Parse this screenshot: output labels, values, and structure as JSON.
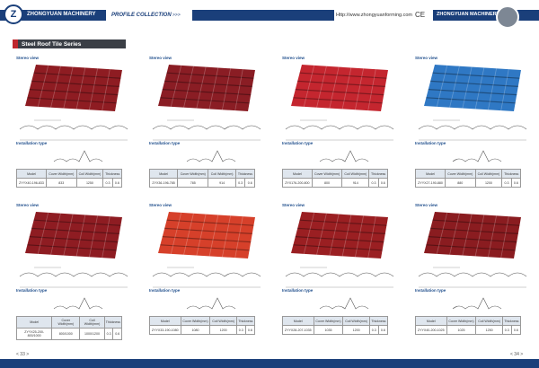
{
  "header": {
    "brand": "ZHONGYUAN MACHINERY",
    "collection": "PROFILE COLLECTION",
    "arrows": ">>>",
    "url": "Http://www.zhongyuanforming.com",
    "ce": "CE",
    "brand_right": "ZHONGYUAN MACHINERY"
  },
  "section_title": "Steel Roof Tile Series",
  "products": [
    {
      "stereo_label": "Stereo view",
      "installation_label": "Installation type",
      "table": {
        "headers": [
          "Model",
          "Cover Width(mm)",
          "Coil Width(mm)",
          "Thickness"
        ],
        "row": [
          "ZYYX40-196-833",
          "833",
          "1250",
          "0.3",
          "0.6"
        ]
      }
    },
    {
      "stereo_label": "Stereo view",
      "installation_label": "Installation type",
      "table": {
        "headers": [
          "Model",
          "Cover Width(mm)",
          "Coil Width(mm)",
          "Thickness"
        ],
        "row": [
          "ZYX36-196-785",
          "785",
          "914",
          "0.3",
          "0.6"
        ]
      }
    },
    {
      "stereo_label": "Stereo view",
      "installation_label": "Installation type",
      "table": {
        "headers": [
          "Model",
          "Cover Width(mm)",
          "Coil Width(mm)",
          "Thickness"
        ],
        "row": [
          "ZYX176-200-800",
          "800",
          "914",
          "0.3",
          "0.6"
        ]
      }
    },
    {
      "stereo_label": "Stereo view",
      "installation_label": "Installation type",
      "table": {
        "headers": [
          "Model",
          "Cover Width(mm)",
          "Coil Width(mm)",
          "Thickness"
        ],
        "row": [
          "ZYYX27-190-880",
          "880",
          "1200",
          "0.3",
          "0.6"
        ]
      }
    },
    {
      "stereo_label": "Stereo view",
      "installation_label": "Installation type",
      "table": {
        "headers": [
          "Model",
          "Cover Width(mm)",
          "Coil Width(mm)",
          "Thickness"
        ],
        "row": [
          "ZYYX25-200-800/1000",
          "800/1000",
          "1000/1200",
          "0.3",
          "0.6"
        ]
      }
    },
    {
      "stereo_label": "Stereo view",
      "installation_label": "Installation type",
      "table": {
        "headers": [
          "Model",
          "Cover Width(mm)",
          "Coil Width(mm)",
          "Thickness"
        ],
        "row": [
          "ZYYX33-190-1080",
          "1080",
          "1200",
          "0.3",
          "0.6"
        ]
      }
    },
    {
      "stereo_label": "Stereo view",
      "installation_label": "Installation type",
      "table": {
        "headers": [
          "Model",
          "Cover Width(mm)",
          "Coil Width(mm)",
          "Thickness"
        ],
        "row": [
          "ZYYX28-207-1035",
          "1035",
          "1200",
          "0.3",
          "0.6"
        ]
      }
    },
    {
      "stereo_label": "Stereo view",
      "installation_label": "Installation type",
      "table": {
        "headers": [
          "Model",
          "Cover Width(mm)",
          "Coil Width(mm)",
          "Thickness"
        ],
        "row": [
          "ZYYX40-200-1025",
          "1025",
          "1250",
          "0.3",
          "0.6"
        ]
      }
    }
  ],
  "pages": [
    "< 33 >",
    "< 34 >"
  ]
}
